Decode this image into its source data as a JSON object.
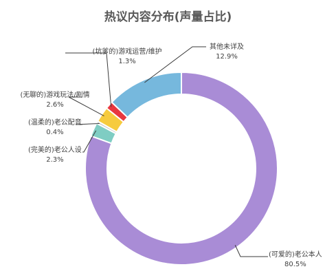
{
  "chart_data": {
    "type": "pie",
    "variant": "donut",
    "title": "热议内容分布(声量占比)",
    "unit": "%",
    "slices": [
      {
        "label": "(可爱的)老公本人",
        "value": 80.5,
        "value_text": "80.5%",
        "color": "#a98cd6"
      },
      {
        "label": "(完美的)老公人设",
        "value": 2.3,
        "value_text": "2.3%",
        "color": "#7fcdc3"
      },
      {
        "label": "(温柔的)老公配音",
        "value": 0.4,
        "value_text": "0.4%",
        "color": "#c8c8c8"
      },
      {
        "label": "(无聊的)游戏玩法/剧情",
        "value": 2.6,
        "value_text": "2.6%",
        "color": "#f6cb3e"
      },
      {
        "label": "(坑爹的)游戏运营/维护",
        "value": 1.3,
        "value_text": "1.3%",
        "color": "#e8373f"
      },
      {
        "label": "其他未详及",
        "value": 12.9,
        "value_text": "12.9%",
        "color": "#76b8dd"
      }
    ],
    "legend": "none"
  }
}
